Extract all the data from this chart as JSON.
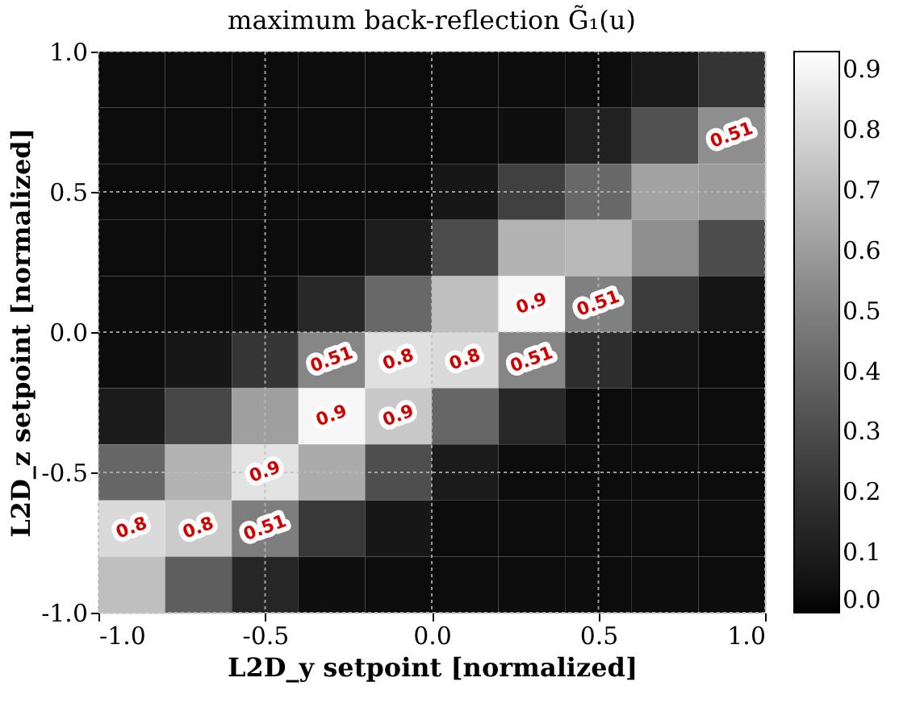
{
  "chart_data": {
    "type": "heatmap",
    "title": "maximum back-reflection G̃₁(u)",
    "xlabel": "L2D_y setpoint [normalized]",
    "ylabel": "L2D_z setpoint [normalized]",
    "x": [
      -0.9,
      -0.7,
      -0.5,
      -0.3,
      -0.1,
      0.1,
      0.3,
      0.5,
      0.7,
      0.9
    ],
    "y": [
      0.9,
      0.7,
      0.5,
      0.3,
      0.1,
      -0.1,
      -0.3,
      -0.5,
      -0.7,
      -0.9
    ],
    "cells": [
      [
        0.03,
        0.03,
        0.03,
        0.03,
        0.03,
        0.03,
        0.03,
        0.03,
        0.08,
        0.2
      ],
      [
        0.03,
        0.03,
        0.03,
        0.03,
        0.03,
        0.03,
        0.04,
        0.12,
        0.32,
        0.55
      ],
      [
        0.03,
        0.03,
        0.03,
        0.03,
        0.03,
        0.07,
        0.25,
        0.41,
        0.62,
        0.6
      ],
      [
        0.03,
        0.03,
        0.03,
        0.03,
        0.1,
        0.3,
        0.68,
        0.7,
        0.55,
        0.3
      ],
      [
        0.03,
        0.03,
        0.04,
        0.15,
        0.41,
        0.72,
        0.9,
        0.5,
        0.23,
        0.06
      ],
      [
        0.03,
        0.07,
        0.21,
        0.52,
        0.83,
        0.81,
        0.52,
        0.17,
        0.05,
        0.03
      ],
      [
        0.09,
        0.28,
        0.61,
        0.9,
        0.75,
        0.4,
        0.15,
        0.03,
        0.03,
        0.03
      ],
      [
        0.4,
        0.68,
        0.84,
        0.65,
        0.31,
        0.09,
        0.03,
        0.03,
        0.03,
        0.03
      ],
      [
        0.81,
        0.76,
        0.49,
        0.22,
        0.07,
        0.03,
        0.03,
        0.03,
        0.03,
        0.03
      ],
      [
        0.72,
        0.37,
        0.14,
        0.04,
        0.03,
        0.03,
        0.03,
        0.03,
        0.03,
        0.03
      ]
    ],
    "xlim": [
      -1.0,
      1.0
    ],
    "ylim": [
      -1.0,
      1.0
    ],
    "xticks": [
      {
        "value": -1,
        "label": "-1.0"
      },
      {
        "value": -0.5,
        "label": "-0.5"
      },
      {
        "value": 0,
        "label": "0.0"
      },
      {
        "value": 0.5,
        "label": "0.5"
      },
      {
        "value": 1,
        "label": "1.0"
      }
    ],
    "yticks": [
      {
        "value": -1,
        "label": "-1.0"
      },
      {
        "value": -0.5,
        "label": "-0.5"
      },
      {
        "value": 0,
        "label": "0.0"
      },
      {
        "value": 0.5,
        "label": "0.5"
      },
      {
        "value": 1,
        "label": "1.0"
      }
    ],
    "clim": [
      0,
      0.93
    ],
    "cticks": [
      {
        "value": 0,
        "label": "0.0"
      },
      0.1,
      0.2,
      0.3,
      0.4,
      0.5,
      0.6,
      0.7,
      0.8,
      0.9
    ],
    "grid": true,
    "annotations": [
      "0.51",
      "0.51",
      "0.9",
      "0.8",
      "0.51",
      "0.8",
      "0.9",
      "0.9",
      "0.8",
      "0.51",
      "0.51",
      "0.8",
      "0.9"
    ]
  }
}
